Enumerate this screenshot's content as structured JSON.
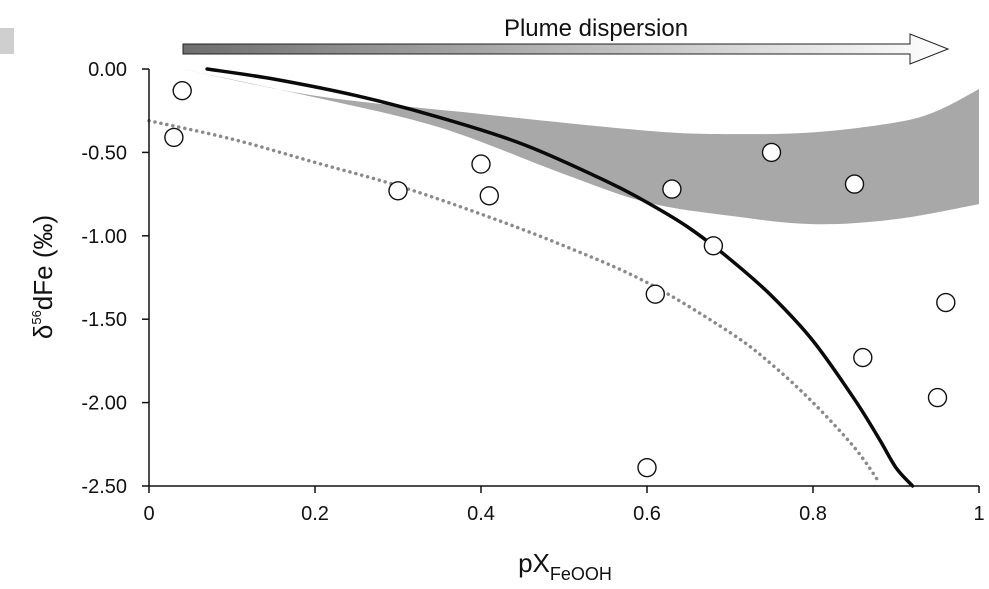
{
  "chart_data": {
    "type": "scatter",
    "title": "",
    "annotation": {
      "text": "Plume dispersion"
    },
    "xlabel": {
      "main": "pX",
      "sub": "FeOOH"
    },
    "ylabel": {
      "main": "δ",
      "sup": "56",
      "rest": "dFe (‰)"
    },
    "xlim": [
      0,
      1
    ],
    "ylim": [
      -2.5,
      0
    ],
    "x_ticks": [
      0,
      0.2,
      0.4,
      0.6,
      0.8,
      1
    ],
    "x_tick_labels": [
      "0",
      "0.2",
      "0.4",
      "0.6",
      "0.8",
      "1"
    ],
    "y_ticks": [
      0,
      -0.5,
      -1,
      -1.5,
      -2,
      -2.5
    ],
    "y_tick_labels": [
      "0.00",
      "-0.50",
      "-1.00",
      "-1.50",
      "-2.00",
      "-2.50"
    ],
    "grid": false,
    "series": [
      {
        "kind": "points",
        "x": [
          0.03,
          0.04,
          0.3,
          0.4,
          0.41,
          0.6,
          0.61,
          0.63,
          0.68,
          0.75,
          0.85,
          0.86,
          0.95,
          0.96
        ],
        "y": [
          -0.41,
          -0.13,
          -0.73,
          -0.57,
          -0.76,
          -2.39,
          -1.35,
          -0.72,
          -1.06,
          -0.5,
          -0.69,
          -1.73,
          -1.97,
          -1.4
        ]
      },
      {
        "kind": "solid-curve",
        "x": [
          0.07,
          0.15,
          0.25,
          0.35,
          0.45,
          0.55,
          0.6,
          0.65,
          0.7,
          0.75,
          0.8,
          0.85,
          0.88,
          0.9,
          0.92
        ],
        "y": [
          0.0,
          -0.06,
          -0.16,
          -0.29,
          -0.45,
          -0.67,
          -0.8,
          -0.95,
          -1.14,
          -1.36,
          -1.63,
          -1.98,
          -2.22,
          -2.39,
          -2.5
        ]
      },
      {
        "kind": "dotted-curve",
        "x": [
          0.0,
          0.1,
          0.2,
          0.3,
          0.4,
          0.5,
          0.6,
          0.7,
          0.75,
          0.8,
          0.85,
          0.88
        ],
        "y": [
          -0.31,
          -0.42,
          -0.56,
          -0.7,
          -0.87,
          -1.06,
          -1.28,
          -1.58,
          -1.77,
          -2.0,
          -2.27,
          -2.48
        ]
      },
      {
        "kind": "shaded-band",
        "upper": {
          "x": [
            0.04,
            0.2,
            0.4,
            0.6,
            0.7,
            0.8,
            0.9,
            0.95,
            1.0
          ],
          "y": [
            0.0,
            -0.16,
            -0.27,
            -0.37,
            -0.39,
            -0.38,
            -0.32,
            -0.25,
            -0.12
          ]
        },
        "lower": {
          "x": [
            0.04,
            0.2,
            0.35,
            0.5,
            0.6,
            0.7,
            0.8,
            0.9,
            1.0
          ],
          "y": [
            0.0,
            -0.17,
            -0.35,
            -0.63,
            -0.8,
            -0.88,
            -0.93,
            -0.9,
            -0.81
          ]
        },
        "color": "#a8a8a8"
      }
    ],
    "colors": {
      "points_fill": "#ffffff",
      "points_stroke": "#111111",
      "solid": "#0a0a0a",
      "dotted": "#8a8a8a",
      "arrow_dark": "#6e6e6e",
      "arrow_light": "#ffffff"
    }
  }
}
